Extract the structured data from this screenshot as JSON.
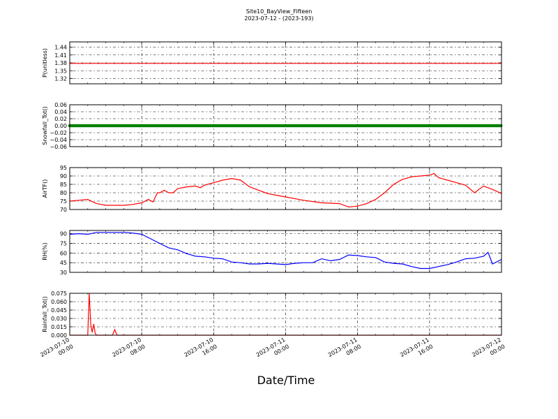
{
  "title": {
    "line1": "Site10_BayView_Fifteen",
    "line2": "2023-07-12 - (2023-193)"
  },
  "xlabel": "Date/Time",
  "x_ticks": [
    {
      "line1": "2023-07-10",
      "line2": "00:00"
    },
    {
      "line1": "2023-07-10",
      "line2": "08:00"
    },
    {
      "line1": "2023-07-10",
      "line2": "16:00"
    },
    {
      "line1": "2023-07-11",
      "line2": "00:00"
    },
    {
      "line1": "2023-07-11",
      "line2": "08:00"
    },
    {
      "line1": "2023-07-11",
      "line2": "16:00"
    },
    {
      "line1": "2023-07-12",
      "line2": "00:00"
    }
  ],
  "chart_data": [
    {
      "type": "line",
      "ylabel": "P(unitless)",
      "color": "#ff0000",
      "xlim": [
        "2023-07-10 00:00",
        "2023-07-12 00:00"
      ],
      "ylim": [
        1.3,
        1.46
      ],
      "yticks": [
        "1.32",
        "1.35",
        "1.38",
        "1.41",
        "1.44"
      ],
      "grid": true,
      "x": [
        "2023-07-10 00:00",
        "2023-07-12 00:00"
      ],
      "y": [
        1.378,
        1.378
      ]
    },
    {
      "type": "line",
      "ylabel": "Snowfall_Tot()",
      "color": "#008000",
      "marker": "circle",
      "xlim": [
        "2023-07-10 00:00",
        "2023-07-12 00:00"
      ],
      "ylim": [
        -0.06,
        0.06
      ],
      "yticks": [
        "−0.06",
        "−0.04",
        "−0.02",
        "0.00",
        "0.02",
        "0.04",
        "0.06"
      ],
      "grid": true,
      "x": [
        "2023-07-10 00:00",
        "2023-07-12 00:00"
      ],
      "y": [
        0.0,
        0.0
      ]
    },
    {
      "type": "line",
      "ylabel": "AirTF()",
      "color": "#ff0000",
      "xlim": [
        "2023-07-10 00:00",
        "2023-07-12 00:00"
      ],
      "ylim": [
        70,
        95
      ],
      "yticks": [
        "70",
        "75",
        "80",
        "85",
        "90",
        "95"
      ],
      "grid": true,
      "x": [
        "2023-07-10 00:00",
        "2023-07-10 01:00",
        "2023-07-10 02:00",
        "2023-07-10 03:00",
        "2023-07-10 04:00",
        "2023-07-10 05:00",
        "2023-07-10 06:00",
        "2023-07-10 07:00",
        "2023-07-10 08:00",
        "2023-07-10 08:45",
        "2023-07-10 09:15",
        "2023-07-10 09:45",
        "2023-07-10 10:00",
        "2023-07-10 10:30",
        "2023-07-10 11:00",
        "2023-07-10 11:30",
        "2023-07-10 12:00",
        "2023-07-10 13:00",
        "2023-07-10 14:00",
        "2023-07-10 14:30",
        "2023-07-10 15:00",
        "2023-07-10 16:00",
        "2023-07-10 17:00",
        "2023-07-10 18:00",
        "2023-07-10 19:00",
        "2023-07-10 20:00",
        "2023-07-10 21:00",
        "2023-07-10 22:00",
        "2023-07-10 23:00",
        "2023-07-11 00:00",
        "2023-07-11 02:00",
        "2023-07-11 04:00",
        "2023-07-11 06:00",
        "2023-07-11 07:00",
        "2023-07-11 08:00",
        "2023-07-11 09:00",
        "2023-07-11 10:00",
        "2023-07-11 11:00",
        "2023-07-11 12:00",
        "2023-07-11 13:00",
        "2023-07-11 14:00",
        "2023-07-11 15:00",
        "2023-07-11 16:00",
        "2023-07-11 16:30",
        "2023-07-11 17:00",
        "2023-07-11 18:00",
        "2023-07-11 19:00",
        "2023-07-11 20:00",
        "2023-07-11 21:00",
        "2023-07-11 22:00",
        "2023-07-11 23:00",
        "2023-07-12 00:00"
      ],
      "y": [
        75,
        75.5,
        76,
        73.5,
        72.5,
        72.5,
        72.5,
        73,
        74,
        76,
        74.5,
        80,
        80,
        81.5,
        80,
        80,
        82.5,
        83.5,
        84,
        83,
        84.5,
        86,
        87.5,
        88.5,
        87.5,
        83.5,
        81.5,
        79.5,
        78.5,
        77.5,
        75.5,
        74,
        73.5,
        71.5,
        72,
        73.5,
        76,
        80,
        85,
        88,
        89.5,
        90,
        90.5,
        91.5,
        89,
        87.5,
        86,
        84.5,
        80,
        84,
        82,
        79.5
      ]
    },
    {
      "type": "line",
      "ylabel": "RH(%)",
      "color": "#0000ff",
      "xlim": [
        "2023-07-10 00:00",
        "2023-07-12 00:00"
      ],
      "ylim": [
        30,
        95
      ],
      "yticks": [
        "30",
        "45",
        "60",
        "75",
        "90"
      ],
      "grid": true,
      "x": [
        "2023-07-10 00:00",
        "2023-07-10 01:00",
        "2023-07-10 02:00",
        "2023-07-10 03:00",
        "2023-07-10 04:00",
        "2023-07-10 05:00",
        "2023-07-10 06:00",
        "2023-07-10 07:00",
        "2023-07-10 08:00",
        "2023-07-10 09:00",
        "2023-07-10 10:00",
        "2023-07-10 11:00",
        "2023-07-10 12:00",
        "2023-07-10 13:00",
        "2023-07-10 14:00",
        "2023-07-10 15:00",
        "2023-07-10 16:00",
        "2023-07-10 17:00",
        "2023-07-10 18:00",
        "2023-07-10 19:00",
        "2023-07-10 20:00",
        "2023-07-10 21:00",
        "2023-07-10 22:00",
        "2023-07-10 23:00",
        "2023-07-11 00:00",
        "2023-07-11 01:00",
        "2023-07-11 02:00",
        "2023-07-11 03:00",
        "2023-07-11 04:00",
        "2023-07-11 05:00",
        "2023-07-11 06:00",
        "2023-07-11 07:00",
        "2023-07-11 08:00",
        "2023-07-11 09:00",
        "2023-07-11 10:00",
        "2023-07-11 11:00",
        "2023-07-11 12:00",
        "2023-07-11 13:00",
        "2023-07-11 14:00",
        "2023-07-11 15:00",
        "2023-07-11 16:00",
        "2023-07-11 17:00",
        "2023-07-11 18:00",
        "2023-07-11 19:00",
        "2023-07-11 20:00",
        "2023-07-11 21:00",
        "2023-07-11 22:00",
        "2023-07-11 22:30",
        "2023-07-11 23:00",
        "2023-07-12 00:00"
      ],
      "y": [
        89,
        90,
        89,
        92,
        92,
        92,
        92,
        91,
        89,
        82,
        75,
        68,
        65,
        59,
        55,
        54,
        52,
        51,
        46,
        45,
        43,
        43,
        44,
        43,
        42,
        44,
        45,
        45,
        51,
        48,
        50,
        57,
        56,
        54,
        53,
        46,
        44,
        43,
        39,
        36,
        36,
        39,
        42,
        46,
        51,
        52,
        55,
        61,
        43,
        50
      ]
    },
    {
      "type": "line",
      "ylabel": "Rainfall_Tot()",
      "color": "#ff0000",
      "xlim": [
        "2023-07-10 00:00",
        "2023-07-12 00:00"
      ],
      "ylim": [
        0,
        0.075
      ],
      "yticks": [
        "0.000",
        "0.015",
        "0.030",
        "0.045",
        "0.060",
        "0.075"
      ],
      "grid": true,
      "x": [
        "2023-07-10 00:00",
        "2023-07-10 02:00",
        "2023-07-10 02:10",
        "2023-07-10 02:20",
        "2023-07-10 02:30",
        "2023-07-10 02:40",
        "2023-07-10 02:50",
        "2023-07-10 03:00",
        "2023-07-10 04:45",
        "2023-07-10 05:00",
        "2023-07-10 05:15",
        "2023-07-10 06:00",
        "2023-07-12 00:00"
      ],
      "y": [
        0,
        0,
        0.075,
        0.02,
        0.005,
        0.02,
        0.003,
        0,
        0,
        0.01,
        0,
        0,
        0
      ]
    }
  ]
}
